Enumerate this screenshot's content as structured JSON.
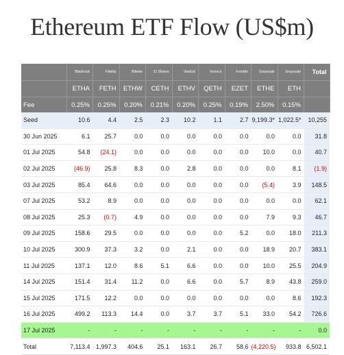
{
  "title": "Ethereum ETF Flow (US$m)",
  "issuers": [
    "Blackrock",
    "Fidelity",
    "Bitwise",
    "21 Shares",
    "VanEck",
    "Invesco",
    "Franklin",
    "Grayscale",
    "Grayscale"
  ],
  "total_header": "Total",
  "tickers": [
    "ETHA",
    "FETH",
    "ETHW",
    "CETH",
    "ETHV",
    "QETH",
    "EZET",
    "ETHE",
    "ETH"
  ],
  "fee_label": "Fee",
  "fees": [
    "0.25%",
    "0.25%",
    "0.20%",
    "0.21%",
    "0.20%",
    "0.25%",
    "0.19%",
    "2.50%",
    "0.15%"
  ],
  "rows": [
    {
      "date": "Seed",
      "vals": [
        "10.6",
        "4.4",
        "2.5",
        "2.3",
        "10.2",
        "1.1",
        "2.7",
        "9,199.3*",
        "1,022.5*"
      ],
      "total": "10,255"
    },
    {
      "date": "30 Jun 2025",
      "vals": [
        "6.1",
        "25.7",
        "0.0",
        "0.0",
        "0.0",
        "0.0",
        "0.0",
        "0.0",
        "0.0"
      ],
      "total": "31.8"
    },
    {
      "date": "01 Jul 2025",
      "vals": [
        "54.8",
        "(24.1)",
        "0.0",
        "0.0",
        "0.0",
        "0.0",
        "0.0",
        "10.0",
        "0.0"
      ],
      "total": "40.7"
    },
    {
      "date": "02 Jul 2025",
      "vals": [
        "(46.9)",
        "25.8",
        "8.3",
        "0.0",
        "2.8",
        "0.0",
        "0.0",
        "0.0",
        "8.1"
      ],
      "total": "(1.9)"
    },
    {
      "date": "03 Jul 2025",
      "vals": [
        "85.4",
        "64.6",
        "0.0",
        "0.0",
        "0.0",
        "0.0",
        "0.0",
        "(5.4)",
        "3.9"
      ],
      "total": "148.5"
    },
    {
      "date": "07 Jul 2025",
      "vals": [
        "53.2",
        "8.9",
        "0.0",
        "0.0",
        "0.0",
        "0.0",
        "0.0",
        "0.0",
        "0.0"
      ],
      "total": "62.1"
    },
    {
      "date": "08 Jul 2025",
      "vals": [
        "25.3",
        "(0.7)",
        "4.9",
        "0.0",
        "0.0",
        "0.0",
        "0.0",
        "7.9",
        "9.3"
      ],
      "total": "46.7"
    },
    {
      "date": "09 Jul 2025",
      "vals": [
        "158.6",
        "29.5",
        "0.0",
        "0.0",
        "0.0",
        "0.0",
        "5.2",
        "0.0",
        "18.0"
      ],
      "total": "211.3"
    },
    {
      "date": "10 Jul 2025",
      "vals": [
        "300.9",
        "37.3",
        "3.2",
        "0.0",
        "2.1",
        "0.0",
        "0.0",
        "18.9",
        "20.7"
      ],
      "total": "383.1"
    },
    {
      "date": "11 Jul 2025",
      "vals": [
        "137.1",
        "12.0",
        "8.6",
        "5.1",
        "6.6",
        "0.0",
        "0.0",
        "10.0",
        "25.5"
      ],
      "total": "204.9"
    },
    {
      "date": "14 Jul 2025",
      "vals": [
        "151.4",
        "31.4",
        "11.2",
        "0.0",
        "6.6",
        "0.0",
        "5.7",
        "8.9",
        "43.8"
      ],
      "total": "259.0"
    },
    {
      "date": "15 Jul 2025",
      "vals": [
        "171.5",
        "12.2",
        "0.0",
        "0.0",
        "0.0",
        "0.0",
        "0.0",
        "0.0",
        "8.6"
      ],
      "total": "192.3"
    },
    {
      "date": "16 Jul 2025",
      "vals": [
        "499.2",
        "113.3",
        "14.4",
        "0.0",
        "3.7",
        "3.7",
        "5.1",
        "33.0",
        "54.2"
      ],
      "total": "726.6"
    },
    {
      "date": "17 Jul 2025",
      "vals": [
        "-",
        "-",
        "-",
        "-",
        "-",
        "-",
        "-",
        "-",
        "-"
      ],
      "total": "0.0",
      "highlight": true
    },
    {
      "date": "Total",
      "vals": [
        "7,113.4",
        "1,997.3",
        "404.6",
        "25.1",
        "163.1",
        "26.7",
        "58.6",
        "(4,220.5)",
        "933.8"
      ],
      "total": "6,502.1",
      "is_total": true
    }
  ],
  "colors": {
    "header_bg": "#7f7f7f",
    "seed_bg": "#e8eef8",
    "highlight_bg": "#a6f792",
    "negative": "#d40000"
  }
}
